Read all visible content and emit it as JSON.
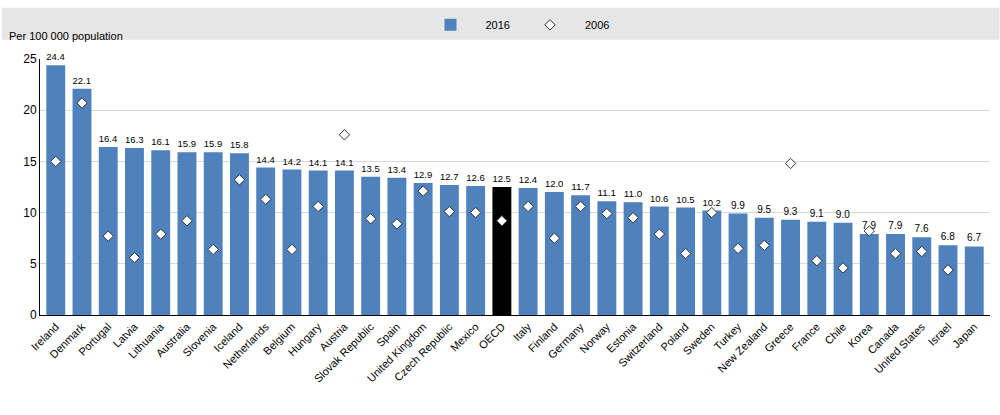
{
  "chart_data": {
    "type": "bar",
    "y_label": "Per 100 000 population",
    "categories": [
      "Ireland",
      "Denmark",
      "Portugal",
      "Latvia",
      "Lithuania",
      "Australia",
      "Slovenia",
      "Iceland",
      "Netherlands",
      "Belgium",
      "Hungary",
      "Austria",
      "Slovak Republic",
      "Spain",
      "United Kingdom",
      "Czech Republic",
      "Mexico",
      "OECD",
      "Italy",
      "Finland",
      "Germany",
      "Norway",
      "Estonia",
      "Switzerland",
      "Poland",
      "Sweden",
      "Turkey",
      "New Zealand",
      "Greece",
      "France",
      "Chile",
      "Korea",
      "Canada",
      "United States",
      "Israel",
      "Japan"
    ],
    "series": [
      {
        "name": "2016",
        "type": "bar",
        "color": "#4f81bd",
        "colors": [
          "#4f81bd",
          "#4f81bd",
          "#4f81bd",
          "#4f81bd",
          "#4f81bd",
          "#4f81bd",
          "#4f81bd",
          "#4f81bd",
          "#4f81bd",
          "#4f81bd",
          "#4f81bd",
          "#4f81bd",
          "#4f81bd",
          "#4f81bd",
          "#4f81bd",
          "#4f81bd",
          "#4f81bd",
          "#000000",
          "#4f81bd",
          "#4f81bd",
          "#4f81bd",
          "#4f81bd",
          "#4f81bd",
          "#4f81bd",
          "#4f81bd",
          "#4f81bd",
          "#4f81bd",
          "#4f81bd",
          "#4f81bd",
          "#4f81bd",
          "#4f81bd",
          "#4f81bd",
          "#4f81bd",
          "#4f81bd",
          "#4f81bd",
          "#4f81bd"
        ],
        "values": [
          24.4,
          22.1,
          16.4,
          16.3,
          16.1,
          15.9,
          15.9,
          15.8,
          14.4,
          14.2,
          14.1,
          14.1,
          13.5,
          13.4,
          12.9,
          12.7,
          12.6,
          12.5,
          12.4,
          12.0,
          11.7,
          11.1,
          11.0,
          10.6,
          10.5,
          10.2,
          9.9,
          9.5,
          9.3,
          9.1,
          9.0,
          7.9,
          7.9,
          7.6,
          6.8,
          6.7
        ],
        "value_labels": [
          "24.4",
          "22.1",
          "16.4",
          "16.3",
          "16.1",
          "15.9",
          "15.9",
          "15.8",
          "14.4",
          "14.2",
          "14.1",
          "14.1",
          "13.5",
          "13.4",
          "12.9",
          "12.7",
          "12.6",
          "12.5",
          "12.4",
          "12.0",
          "11.7",
          "11.1",
          "11.0",
          "10.6",
          "10.5",
          "10.2",
          "9.9",
          "9.5",
          "9.3",
          "9.1",
          "9.0",
          "7.9",
          "7.9",
          "7.6",
          "6.8",
          "6.7"
        ]
      },
      {
        "name": "2006",
        "type": "scatter",
        "marker": "diamond",
        "color": "#ffffff",
        "values": [
          15.0,
          20.7,
          7.7,
          5.6,
          7.9,
          9.2,
          6.4,
          13.2,
          11.3,
          6.4,
          10.6,
          17.6,
          9.4,
          8.9,
          12.1,
          10.1,
          10.0,
          9.2,
          10.6,
          7.5,
          10.6,
          9.9,
          9.5,
          7.9,
          6.0,
          10.0,
          6.5,
          6.8,
          14.8,
          5.3,
          4.6,
          8.2,
          6.0,
          6.2,
          4.4,
          null
        ]
      }
    ],
    "ylim": [
      0,
      25
    ],
    "yticks": [
      0,
      5,
      10,
      15,
      20,
      25
    ],
    "grid": true,
    "legend": "top",
    "data_labels": true
  }
}
